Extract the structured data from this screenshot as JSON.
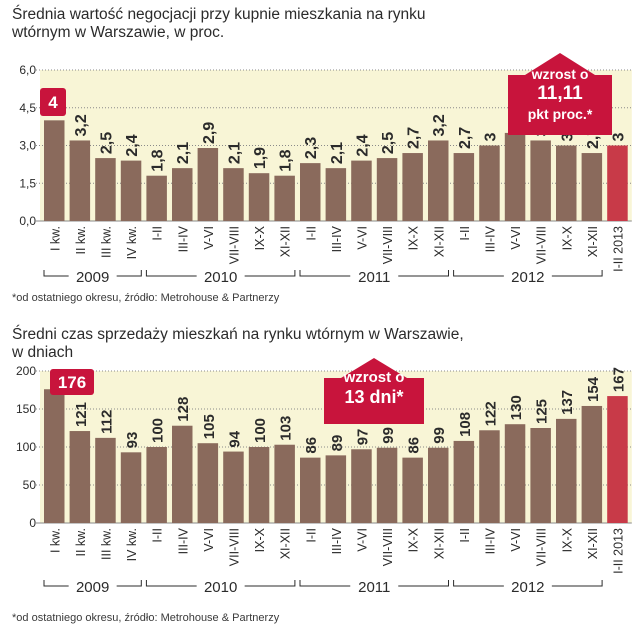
{
  "colors": {
    "bar": "#8a6a5c",
    "bar_last": "#c83a48",
    "highlight": "#c8143c",
    "bg_band": "#f8f5d6",
    "grid": "#8a8a8a",
    "text": "#2b2b2b"
  },
  "charts": [
    {
      "title_lines": [
        "Średnia wartość negocjacji przy kupnie mieszkania na rynku",
        "wtórnym w Warszawie, w proc."
      ],
      "footnote": "*od ostatniego okresu, źródło: Metrohouse & Partnerzy",
      "callout": [
        "wzrost o",
        "11,11",
        "pkt proc.*"
      ],
      "first_badge": "4"
    },
    {
      "title_lines": [
        "Średni czas sprzedaży mieszkań na rynku wtórnym w Warszawie,",
        "w dniach"
      ],
      "footnote": "*od ostatniego okresu, źródło: Metrohouse & Partnerzy",
      "callout": [
        "wzrost o",
        "13 dni*"
      ],
      "first_badge": "176"
    }
  ],
  "chart_data": [
    {
      "type": "bar",
      "categories": [
        "I kw.",
        "II kw.",
        "III kw.",
        "IV kw.",
        "I-II",
        "III-IV",
        "V-VI",
        "VII-VIII",
        "IX-X",
        "XI-XII",
        "I-II",
        "III-IV",
        "V-VI",
        "VII-VIII",
        "IX-X",
        "XI-XII",
        "I-II",
        "III-IV",
        "V-VI",
        "VII-VIII",
        "IX-X",
        "XI-XII",
        "I-II 2013"
      ],
      "values": [
        4,
        3.2,
        2.5,
        2.4,
        1.8,
        2.1,
        2.9,
        2.1,
        1.9,
        1.8,
        2.3,
        2.1,
        2.4,
        2.5,
        2.7,
        3.2,
        2.7,
        3,
        3.5,
        3.2,
        3,
        2.7,
        3
      ],
      "value_labels": [
        "4",
        "3,2",
        "2,5",
        "2,4",
        "1,8",
        "2,1",
        "2,9",
        "2,1",
        "1,9",
        "1,8",
        "2,3",
        "2,1",
        "2,4",
        "2,5",
        "2,7",
        "3,2",
        "2,7",
        "3",
        "3,5",
        "3,2",
        "3",
        "2,7",
        "3"
      ],
      "y_ticks": [
        "0,0",
        "1,5",
        "3,0",
        "4,5",
        "6,0"
      ],
      "ylim": [
        0,
        6
      ],
      "groups": [
        {
          "label": "2009",
          "start": 0,
          "end": 3
        },
        {
          "label": "2010",
          "start": 4,
          "end": 9
        },
        {
          "label": "2011",
          "start": 10,
          "end": 15
        },
        {
          "label": "2012",
          "start": 16,
          "end": 21
        }
      ]
    },
    {
      "type": "bar",
      "categories": [
        "I kw.",
        "II kw.",
        "III kw.",
        "IV kw.",
        "I-II",
        "III-IV",
        "V-VI",
        "VII-VIII",
        "IX-X",
        "XI-XII",
        "I-II",
        "III-IV",
        "V-VI",
        "VII-VIII",
        "IX-X",
        "XI-XII",
        "I-II",
        "III-IV",
        "V-VI",
        "VII-VIII",
        "IX-X",
        "XI-XII",
        "I-II 2013"
      ],
      "values": [
        176,
        121,
        112,
        93,
        100,
        128,
        105,
        94,
        100,
        103,
        86,
        89,
        97,
        99,
        86,
        99,
        108,
        122,
        130,
        125,
        137,
        154,
        167
      ],
      "value_labels": [
        "176",
        "121",
        "112",
        "93",
        "100",
        "128",
        "105",
        "94",
        "100",
        "103",
        "86",
        "89",
        "97",
        "99",
        "86",
        "99",
        "108",
        "122",
        "130",
        "125",
        "137",
        "154",
        "167"
      ],
      "y_ticks": [
        "0",
        "50",
        "100",
        "150",
        "200"
      ],
      "ylim": [
        0,
        200
      ],
      "groups": [
        {
          "label": "2009",
          "start": 0,
          "end": 3
        },
        {
          "label": "2010",
          "start": 4,
          "end": 9
        },
        {
          "label": "2011",
          "start": 10,
          "end": 15
        },
        {
          "label": "2012",
          "start": 16,
          "end": 21
        }
      ]
    }
  ]
}
